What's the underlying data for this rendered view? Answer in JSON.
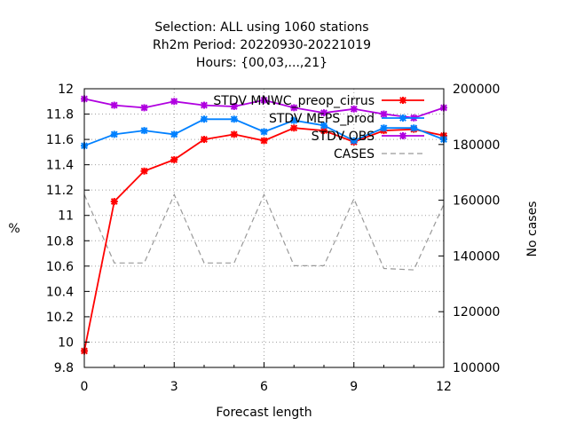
{
  "chart_data": {
    "type": "line",
    "title_lines": [
      "Selection: ALL using  1060 stations",
      "Rh2m   Period: 20220930-20221019",
      "Hours: {00,03,...,21}"
    ],
    "xlabel": "Forecast length",
    "ylabel": "%",
    "y2label": "No cases",
    "xlim": [
      0,
      12
    ],
    "ylim": [
      9.8,
      12
    ],
    "y2lim": [
      100000,
      200000
    ],
    "xticks": [
      "0",
      "3",
      "6",
      "9",
      "12"
    ],
    "yticks": [
      "9.8",
      "10",
      "10.2",
      "10.4",
      "10.6",
      "10.8",
      "11",
      "11.2",
      "11.4",
      "11.6",
      "11.8",
      "12"
    ],
    "y2ticks": [
      "100000",
      "120000",
      "140000",
      "160000",
      "180000",
      "200000"
    ],
    "grid": true,
    "legend_position": "top-right",
    "x": [
      0,
      1,
      2,
      3,
      4,
      5,
      6,
      7,
      8,
      9,
      10,
      11,
      12
    ],
    "series": [
      {
        "name": "STDV MNWC_preop_cirrus",
        "color": "#ff0000",
        "axis": "y",
        "style": "solid-marker",
        "values": [
          9.93,
          11.11,
          11.35,
          11.44,
          11.6,
          11.64,
          11.59,
          11.69,
          11.67,
          11.58,
          11.67,
          11.68,
          11.63
        ]
      },
      {
        "name": "STDV MEPS_prod",
        "color": "#0080ff",
        "axis": "y",
        "style": "solid-marker",
        "values": [
          11.55,
          11.64,
          11.67,
          11.64,
          11.76,
          11.76,
          11.66,
          11.75,
          11.71,
          11.59,
          11.69,
          11.69,
          11.6
        ]
      },
      {
        "name": "STDV OBS",
        "color": "#b000e0",
        "axis": "y",
        "style": "solid-marker",
        "values": [
          11.92,
          11.87,
          11.85,
          11.9,
          11.87,
          11.86,
          11.91,
          11.85,
          11.81,
          11.84,
          11.8,
          11.77,
          11.85
        ]
      },
      {
        "name": "CASES",
        "color": "#999999",
        "axis": "y2",
        "style": "dashed",
        "values": [
          162000,
          137500,
          137500,
          162000,
          137500,
          137500,
          162000,
          136500,
          136500,
          160500,
          135500,
          135000,
          158500
        ]
      }
    ]
  }
}
